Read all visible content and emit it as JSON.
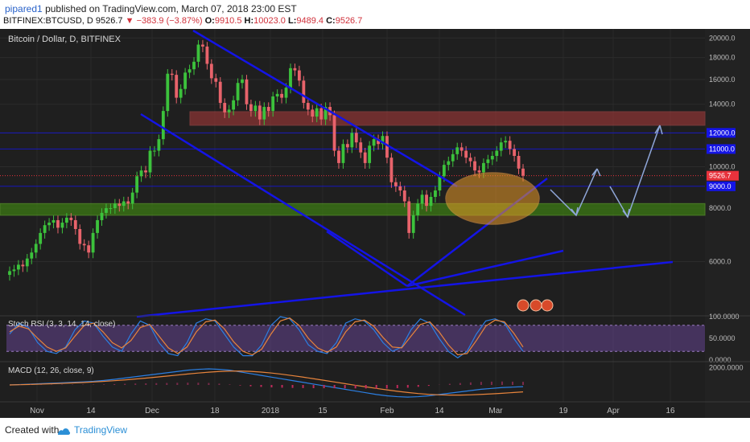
{
  "header": {
    "author": "pipared1",
    "published_text": "published on TradingView.com, March 07, 2018 23:00 EST",
    "symbol": "BITFINEX:BTCUSD, D",
    "last": "9526.7",
    "change": "−383.9 (−3.87%)",
    "o_label": "O:",
    "o_value": "9910.5",
    "h_label": "H:",
    "h_value": "10023.0",
    "l_label": "L:",
    "l_value": "9489.4",
    "c_label": "C:",
    "c_value": "9526.7"
  },
  "footer": {
    "created_with": "Created with",
    "brand": "TradingView"
  },
  "colors": {
    "up": "#3cc23c",
    "down": "#e8636b",
    "trendline": "#1414e6",
    "arrow": "#8fa6d8",
    "resistance_zone": "#b03c3c",
    "support_zone": "#3c7a14",
    "hline": "#1414e6",
    "price_label_bg": "#e8323c",
    "k_line": "#2b7fe3",
    "d_line": "#e8843c",
    "rsi_band": "#e8dcf5",
    "macd_line": "#2b7fe3",
    "signal_line": "#e8843c",
    "ellipse": "#e89a28",
    "bg": "#1f1f1f"
  },
  "chart_data": [
    {
      "type": "candlestick",
      "title": "Bitcoin / Dollar, D, BITFINEX",
      "x_tick_labels": [
        "Nov",
        "14",
        "Dec",
        "18",
        "2018",
        "15",
        "Feb",
        "14",
        "Mar",
        "19",
        "Apr",
        "16"
      ],
      "y_tick_labels": [
        "20000.0",
        "18000.0",
        "16000.0",
        "14000.0",
        "12000.0",
        "11000.0",
        "10000.0",
        "9000.0",
        "8000.0",
        "6000.0"
      ],
      "ylim": [
        4500,
        21000
      ],
      "last_price_label": "9526.7",
      "close_series_approx": [
        5700,
        5750,
        5900,
        5850,
        6100,
        6300,
        6600,
        7000,
        7300,
        7400,
        7500,
        7200,
        7400,
        7600,
        7500,
        7150,
        6600,
        6550,
        6300,
        7000,
        7500,
        7800,
        8000,
        8000,
        8200,
        8100,
        8300,
        8200,
        8700,
        9500,
        9800,
        9700,
        10900,
        10900,
        11600,
        13500,
        16500,
        16400,
        14500,
        15200,
        16600,
        16900,
        17600,
        19300,
        19100,
        17400,
        16100,
        15800,
        14100,
        13400,
        13600,
        14300,
        15700,
        16000,
        14000,
        13500,
        13900,
        12900,
        13800,
        13500,
        14600,
        14800,
        14500,
        15300,
        17000,
        16800,
        15900,
        14100,
        13600,
        13100,
        13700,
        12900,
        13800,
        13200,
        10900,
        10200,
        11300,
        11100,
        12000,
        11400,
        10800,
        10200,
        11200,
        11600,
        11300,
        11800,
        10500,
        9200,
        9000,
        8800,
        8300,
        7000,
        7700,
        8200,
        8600,
        8100,
        8500,
        8800,
        9500,
        10100,
        10300,
        10700,
        11100,
        10900,
        10500,
        10300,
        9800,
        9700,
        10200,
        10400,
        10600,
        10900,
        11400,
        11500,
        11000,
        10600,
        9900,
        9526.7
      ],
      "horizontal_levels": [
        12000,
        11000,
        9000
      ],
      "resistance_zone": [
        12500,
        13450
      ],
      "support_zone": [
        7700,
        8200
      ],
      "annotations": [
        "descending channel",
        "ascending trendlines",
        "projected zigzag arrows",
        "orange ellipse highlight",
        "event markers 5 1 5"
      ]
    },
    {
      "type": "line",
      "title": "Stoch RSI (3, 3, 14, 14, close)",
      "y_tick_labels": [
        "100.0000",
        "50.0000",
        "0.0000"
      ],
      "ylim": [
        0,
        100
      ],
      "band": [
        20,
        80
      ],
      "series": [
        {
          "values": [
            60,
            85,
            75,
            40,
            20,
            15,
            30,
            70,
            90,
            85,
            55,
            30,
            20,
            60,
            90,
            80,
            40,
            15,
            10,
            40,
            85,
            95,
            90,
            60,
            30,
            10,
            10,
            35,
            80,
            100,
            95,
            70,
            35,
            20,
            15,
            40,
            85,
            95,
            90,
            70,
            40,
            20,
            30,
            70,
            95,
            85,
            50,
            20,
            5,
            20,
            60,
            90,
            95,
            85,
            50,
            20
          ]
        },
        {
          "values": [
            65,
            78,
            72,
            50,
            30,
            20,
            28,
            55,
            80,
            85,
            65,
            40,
            28,
            45,
            75,
            82,
            55,
            28,
            15,
            30,
            65,
            88,
            92,
            72,
            42,
            20,
            12,
            25,
            60,
            90,
            97,
            80,
            50,
            28,
            18,
            30,
            65,
            88,
            92,
            78,
            52,
            30,
            28,
            55,
            82,
            88,
            65,
            35,
            12,
            15,
            45,
            78,
            92,
            88,
            62,
            30
          ]
        }
      ]
    },
    {
      "type": "line",
      "title": "MACD (12, 26, close, 9)",
      "y_tick_labels": [
        "2000.0000"
      ],
      "ylim": [
        -2500,
        2500
      ],
      "series": [
        {
          "values": [
            0,
            50,
            100,
            150,
            200,
            250,
            300,
            350,
            420,
            520,
            650,
            800,
            950,
            1100,
            1250,
            1400,
            1550,
            1700,
            1800,
            1850,
            1800,
            1700,
            1500,
            1300,
            1100,
            900,
            700,
            500,
            300,
            100,
            -100,
            -300,
            -500,
            -700,
            -900,
            -1100,
            -1250,
            -1350,
            -1400,
            -1350,
            -1250,
            -1100,
            -950,
            -800,
            -650,
            -500,
            -400,
            -300,
            -250,
            -200
          ]
        },
        {
          "values": [
            0,
            30,
            60,
            100,
            140,
            180,
            230,
            280,
            340,
            410,
            490,
            580,
            680,
            790,
            900,
            1020,
            1140,
            1260,
            1370,
            1470,
            1550,
            1600,
            1600,
            1560,
            1480,
            1370,
            1230,
            1070,
            900,
            720,
            530,
            340,
            150,
            -40,
            -220,
            -400,
            -570,
            -730,
            -870,
            -990,
            -1080,
            -1140,
            -1170,
            -1170,
            -1140,
            -1090,
            -1030,
            -960,
            -880,
            -800
          ]
        }
      ]
    }
  ]
}
